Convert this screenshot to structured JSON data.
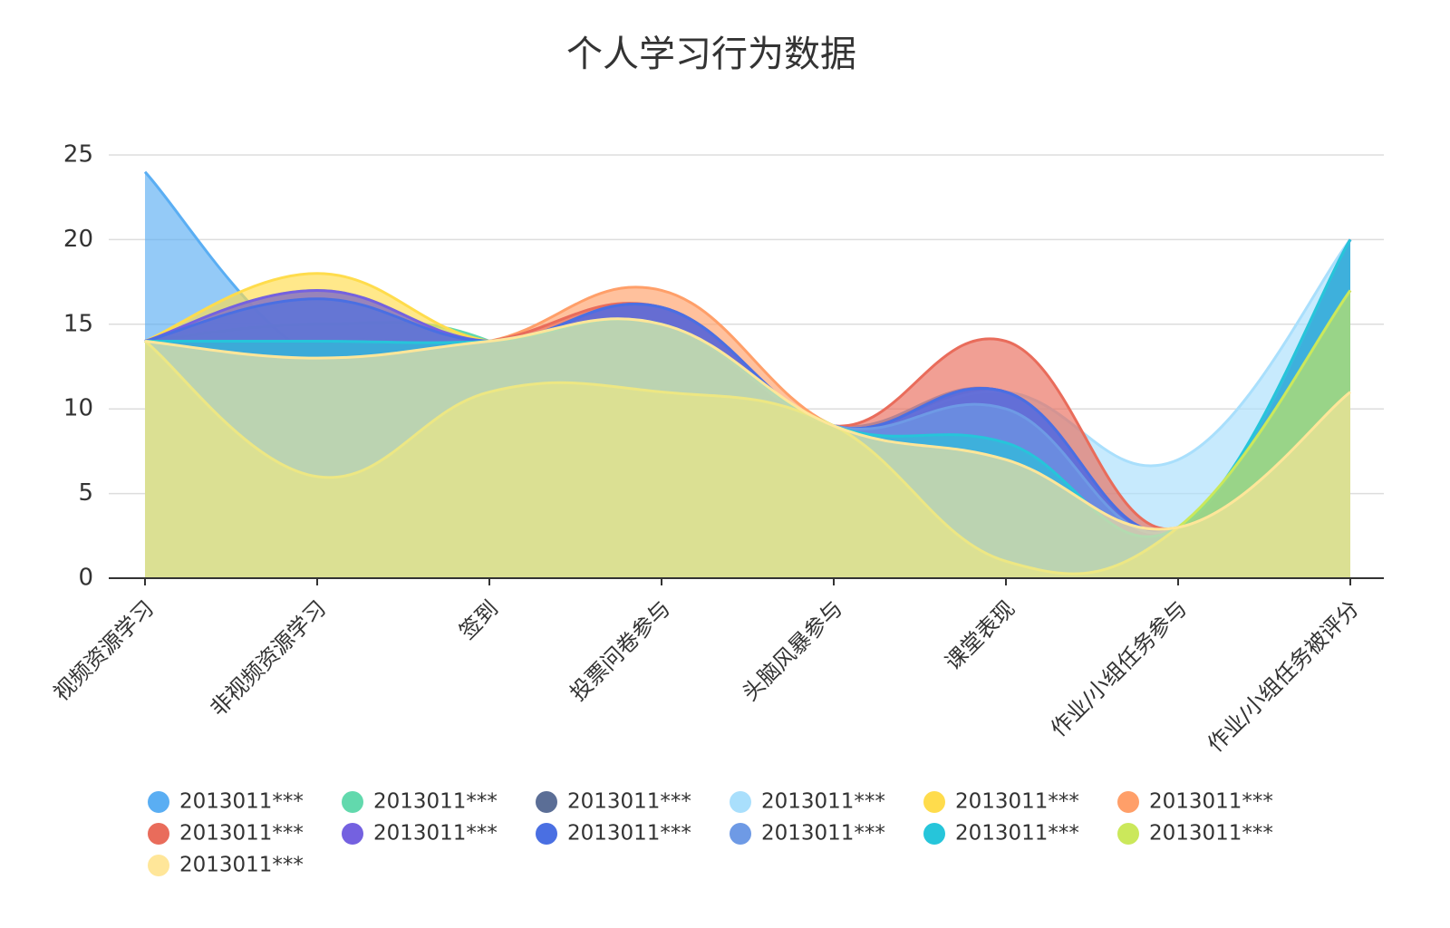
{
  "chart_data": {
    "type": "area",
    "title": "个人学习行为数据",
    "categories": [
      "视频资源学习",
      "非视频资源学习",
      "签到",
      "投票问卷参与",
      "头脑风暴参与",
      "课堂表现",
      "作业/小组任务参与",
      "作业/小组任务被评分"
    ],
    "ylim": [
      0,
      25
    ],
    "yticks": [
      0,
      5,
      10,
      15,
      20,
      25
    ],
    "grid": true,
    "smooth": true,
    "legend": "bottom",
    "series": [
      {
        "name": "2013011***",
        "color": "#5aaef3",
        "values": [
          24,
          13,
          14,
          14,
          9,
          11,
          3,
          20
        ]
      },
      {
        "name": "2013011***",
        "color": "#62d9ad",
        "values": [
          14,
          15,
          14,
          7,
          9,
          2,
          3,
          17
        ]
      },
      {
        "name": "2013011***",
        "color": "#5b6e96",
        "values": [
          14,
          17,
          14,
          16,
          9,
          11,
          3,
          20
        ]
      },
      {
        "name": "2013011***",
        "color": "#a9dffc",
        "values": [
          14,
          14,
          14,
          15,
          9,
          11,
          7,
          20
        ]
      },
      {
        "name": "2013011***",
        "color": "#ffdc4c",
        "values": [
          14,
          18,
          14,
          15,
          9,
          8,
          3,
          17
        ]
      },
      {
        "name": "2013011***",
        "color": "#ff9f69",
        "values": [
          14,
          13,
          14,
          17,
          9,
          8,
          3,
          17
        ]
      },
      {
        "name": "2013011***",
        "color": "#e96c5b",
        "values": [
          14,
          13,
          14,
          16,
          9,
          14,
          3,
          20
        ]
      },
      {
        "name": "2013011***",
        "color": "#7461e0",
        "values": [
          14,
          17,
          14,
          16,
          9,
          11,
          3,
          20
        ]
      },
      {
        "name": "2013011***",
        "color": "#4a6fe2",
        "values": [
          14,
          16.5,
          14,
          16,
          9,
          11,
          3,
          20
        ]
      },
      {
        "name": "2013011***",
        "color": "#6e9ae5",
        "values": [
          14,
          13,
          14,
          15,
          9,
          10,
          3,
          20
        ]
      },
      {
        "name": "2013011***",
        "color": "#26c5da",
        "values": [
          14,
          14,
          14,
          15,
          9,
          8,
          3,
          20
        ]
      },
      {
        "name": "2013011***",
        "color": "#cbe85b",
        "values": [
          14,
          6,
          11,
          11,
          9,
          1,
          3,
          17
        ]
      },
      {
        "name": "2013011***",
        "color": "#ffe699",
        "values": [
          14,
          13,
          14,
          15,
          9,
          7,
          3,
          11
        ]
      }
    ]
  }
}
